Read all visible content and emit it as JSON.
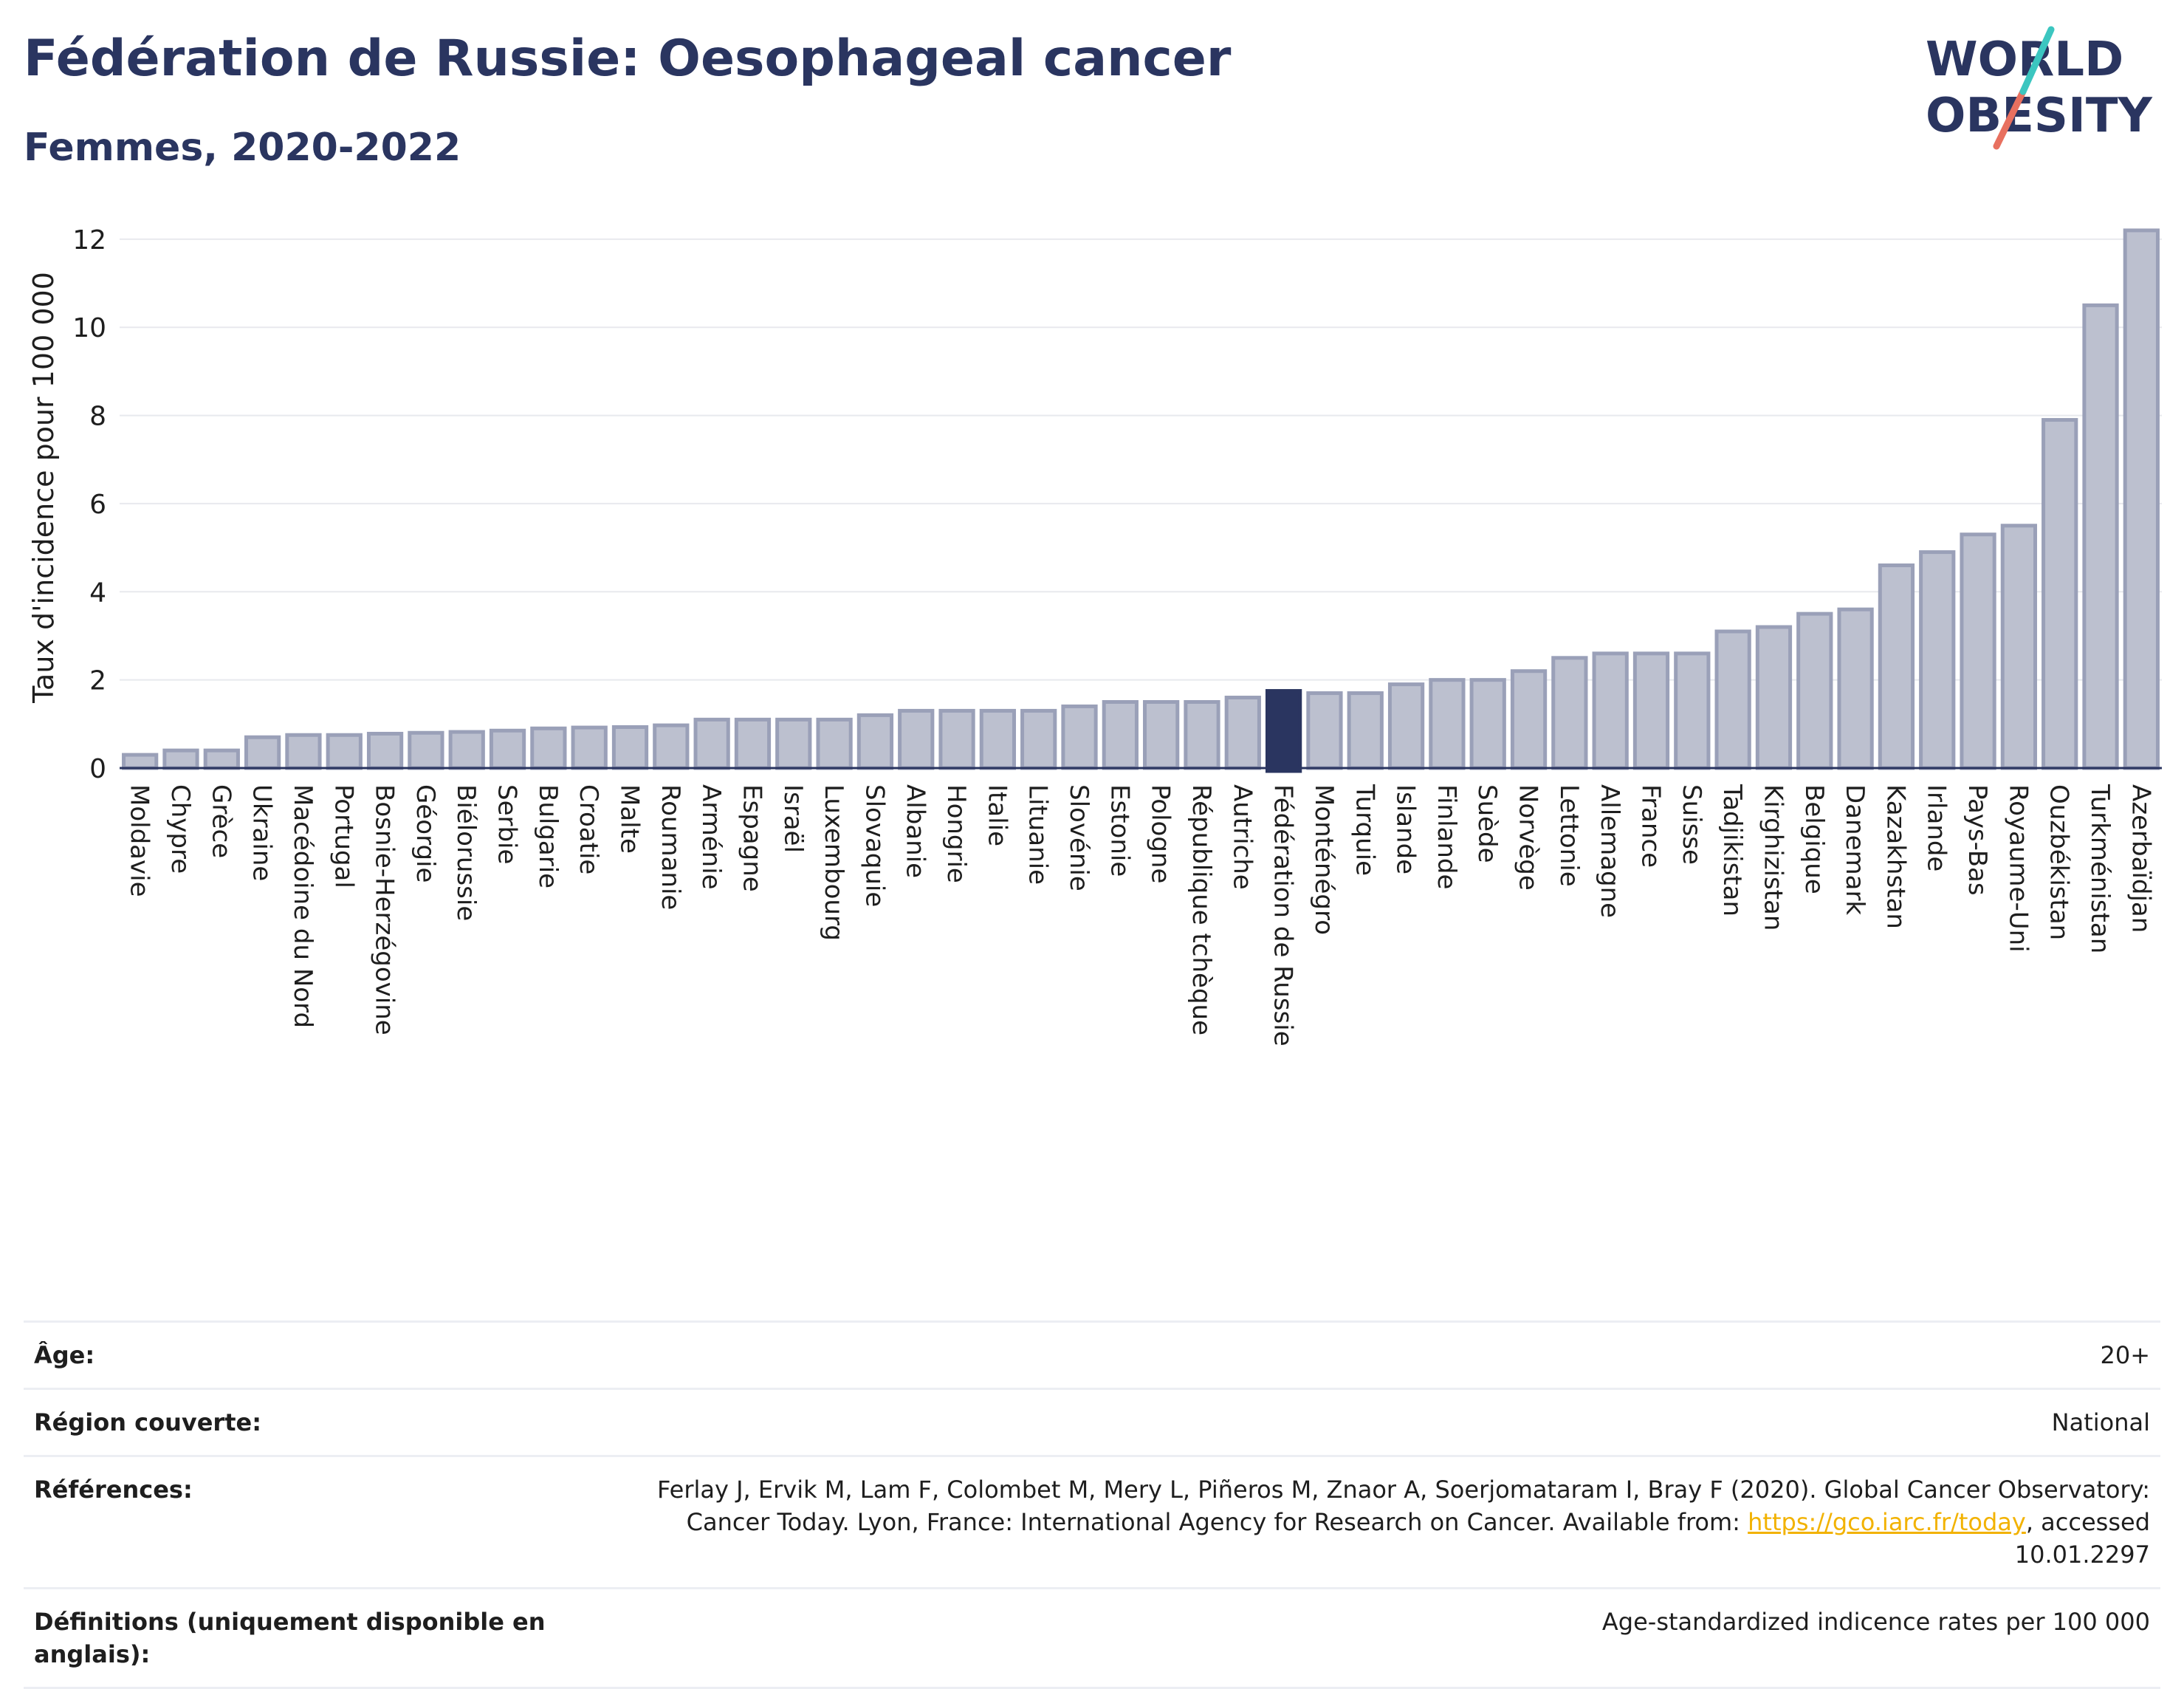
{
  "header": {
    "title": "Fédération de Russie: Oesophageal cancer",
    "subtitle": "Femmes, 2020-2022"
  },
  "logo": {
    "line1": "WORLD",
    "line2": "OBESITY"
  },
  "colors": {
    "bar": "#bcc0cf",
    "bar_stroke": "#9aa0b8",
    "highlight": "#2a3560",
    "grid": "#e8e9ee",
    "title": "#2a3560"
  },
  "chart_data": {
    "type": "bar",
    "ylabel": "Taux d'incidence pour 100 000",
    "ylim": [
      0,
      12.4
    ],
    "yticks": [
      0,
      2,
      4,
      6,
      8,
      10,
      12
    ],
    "highlight": "Fédération de Russie",
    "categories": [
      "Moldavie",
      "Chypre",
      "Grèce",
      "Ukraine",
      "Macédoine du Nord",
      "Portugal",
      "Bosnie-Herzégovine",
      "Géorgie",
      "Biélorussie",
      "Serbie",
      "Bulgarie",
      "Croatie",
      "Malte",
      "Roumanie",
      "Arménie",
      "Espagne",
      "Israël",
      "Luxembourg",
      "Slovaquie",
      "Albanie",
      "Hongrie",
      "Italie",
      "Lituanie",
      "Slovénie",
      "Estonie",
      "Pologne",
      "République tchèque",
      "Autriche",
      "Fédération de Russie",
      "Monténégro",
      "Turquie",
      "Islande",
      "Finlande",
      "Suède",
      "Norvège",
      "Lettonie",
      "Allemagne",
      "France",
      "Suisse",
      "Tadjikistan",
      "Kirghizistan",
      "Belgique",
      "Danemark",
      "Kazakhstan",
      "Irlande",
      "Pays-Bas",
      "Royaume-Uni",
      "Ouzbékistan",
      "Turkménistan",
      "Azerbaïdjan"
    ],
    "values": [
      0.3,
      0.4,
      0.4,
      0.7,
      0.75,
      0.75,
      0.78,
      0.8,
      0.82,
      0.85,
      0.9,
      0.92,
      0.93,
      0.97,
      1.1,
      1.1,
      1.1,
      1.1,
      1.2,
      1.3,
      1.3,
      1.3,
      1.3,
      1.4,
      1.5,
      1.5,
      1.5,
      1.6,
      1.75,
      1.7,
      1.7,
      1.9,
      2.0,
      2.0,
      2.2,
      2.5,
      2.6,
      2.6,
      2.6,
      3.1,
      3.2,
      3.5,
      3.6,
      4.6,
      4.9,
      5.3,
      5.5,
      7.9,
      10.5,
      12.2
    ]
  },
  "meta": [
    {
      "label": "Âge:",
      "value": "20+"
    },
    {
      "label": "Région couverte:",
      "value": "National"
    },
    {
      "label": "Références:",
      "value_pre": "Ferlay J, Ervik M, Lam F, Colombet M, Mery L, Piñeros M, Znaor A, Soerjomataram I, Bray F (2020). Global Cancer Observatory: Cancer Today. Lyon, France: International Agency for Research on Cancer. Available from: ",
      "link": "https://gco.iarc.fr/today",
      "value_post": ", accessed 10.01.2297"
    },
    {
      "label": "Définitions (uniquement disponible en anglais):",
      "value": "Age-standardized indicence rates per 100 000"
    }
  ]
}
